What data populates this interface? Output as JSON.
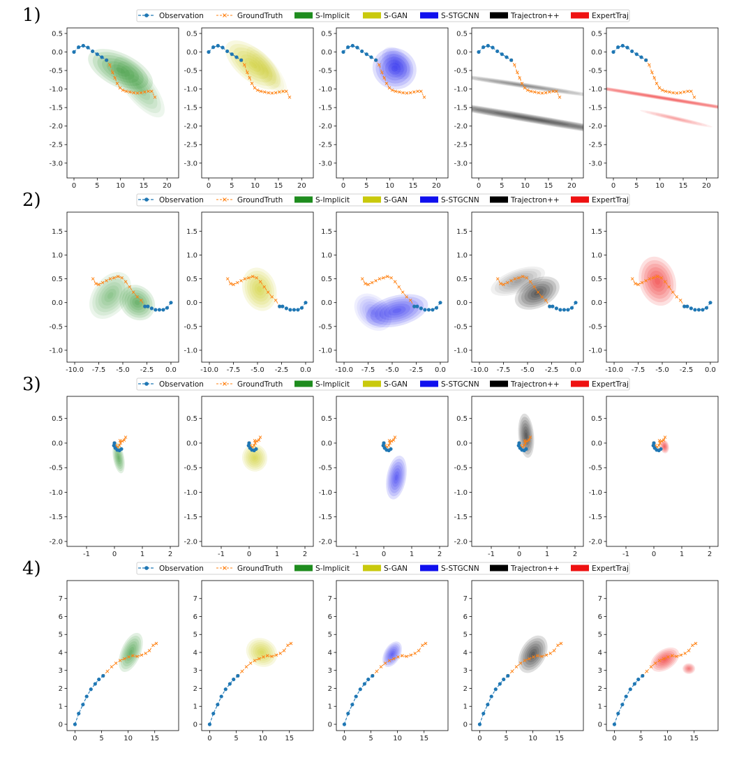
{
  "colors": {
    "observation": "#1f77b4",
    "groundtruth": "#ff7f0e",
    "S-Implicit": "#1e8c1e",
    "S-GAN": "#c9c90c",
    "S-STGCNN": "#1010ee",
    "Trajectron++": "#000000",
    "ExpertTraj": "#ee1111"
  },
  "legend": [
    {
      "label": "Observation",
      "kind": "obs"
    },
    {
      "label": "GroundTruth",
      "kind": "gt"
    },
    {
      "label": "S-Implicit",
      "kind": "patch",
      "method": "S-Implicit"
    },
    {
      "label": "S-GAN",
      "kind": "patch",
      "method": "S-GAN"
    },
    {
      "label": "S-STGCNN",
      "kind": "patch",
      "method": "S-STGCNN"
    },
    {
      "label": "Trajectron++",
      "kind": "patch",
      "method": "Trajectron++"
    },
    {
      "label": "ExpertTraj",
      "kind": "patch",
      "method": "ExpertTraj"
    }
  ],
  "chart_data": [
    {
      "type": "scatter",
      "row_label": "1)",
      "xlim": [
        -1.5,
        22.5
      ],
      "ylim": [
        -3.4,
        0.65
      ],
      "xticks": [
        0,
        5,
        10,
        15,
        20
      ],
      "yticks": [
        0.5,
        0.0,
        -0.5,
        -1.0,
        -1.5,
        -2.0,
        -2.5,
        -3.0
      ],
      "observation": [
        [
          0,
          0
        ],
        [
          1,
          0.13
        ],
        [
          2,
          0.17
        ],
        [
          3,
          0.12
        ],
        [
          4,
          0.02
        ],
        [
          5,
          -0.06
        ],
        [
          6,
          -0.14
        ],
        [
          7,
          -0.22
        ]
      ],
      "ground_truth": [
        [
          7,
          -0.22
        ],
        [
          7.7,
          -0.35
        ],
        [
          8.3,
          -0.55
        ],
        [
          8.8,
          -0.7
        ],
        [
          9.3,
          -0.85
        ],
        [
          9.9,
          -0.97
        ],
        [
          10.5,
          -1.03
        ],
        [
          11.2,
          -1.06
        ],
        [
          12,
          -1.08
        ],
        [
          12.8,
          -1.1
        ],
        [
          13.6,
          -1.11
        ],
        [
          14.4,
          -1.1
        ],
        [
          15.2,
          -1.08
        ],
        [
          16,
          -1.06
        ],
        [
          16.7,
          -1.06
        ],
        [
          17.4,
          -1.22
        ]
      ],
      "predictions": {
        "S-Implicit": [
          {
            "c": [
              10,
              -0.5
            ],
            "s": [
              3.6,
              0.95
            ],
            "r": 0.25,
            "w": 1
          },
          {
            "c": [
              14,
              -0.95
            ],
            "s": [
              3,
              1.0
            ],
            "r": 0.1,
            "w": 0.6
          }
        ],
        "S-GAN": [
          {
            "c": [
              9.5,
              -0.35
            ],
            "s": [
              3.4,
              0.9
            ],
            "r": 0.15,
            "w": 1
          },
          {
            "c": [
              12.5,
              -0.5
            ],
            "s": [
              2.2,
              0.8
            ],
            "r": 0.1,
            "w": 0.5
          }
        ],
        "S-STGCNN": [
          {
            "c": [
              11,
              -0.45
            ],
            "s": [
              4.4,
              0.6
            ],
            "r": 0.28,
            "w": 1
          },
          {
            "c": [
              11.5,
              -0.3
            ],
            "s": [
              2.5,
              0.5
            ],
            "r": 0.1,
            "w": 0.5
          }
        ],
        "Trajectron++": [
          {
            "c": [
              11.3,
              -1.8
            ],
            "s": [
              0.9,
              3.6
            ],
            "r": 0.64,
            "w": 1
          },
          {
            "c": [
              9.5,
              -0.9
            ],
            "s": [
              0.6,
              2.2
            ],
            "r": 0.7,
            "w": 0.6
          }
        ],
        "ExpertTraj": [
          {
            "c": [
              11,
              -1.25
            ],
            "s": [
              0.45,
              3.4
            ],
            "r": 0.66,
            "w": 1
          },
          {
            "c": [
              13.5,
              -1.8
            ],
            "s": [
              0.5,
              1.0
            ],
            "r": 0.5,
            "w": 0.5
          }
        ]
      }
    },
    {
      "type": "scatter",
      "row_label": "2)",
      "xlim": [
        -10.8,
        0.8
      ],
      "ylim": [
        -1.25,
        1.9
      ],
      "xticks": [
        -10.0,
        -7.5,
        -5.0,
        -2.5,
        0.0
      ],
      "yticks": [
        1.5,
        1.0,
        0.5,
        0.0,
        -0.5,
        -1.0
      ],
      "observation": [
        [
          0,
          0
        ],
        [
          -0.4,
          -0.11
        ],
        [
          -0.8,
          -0.15
        ],
        [
          -1.2,
          -0.15
        ],
        [
          -1.6,
          -0.15
        ],
        [
          -2,
          -0.12
        ],
        [
          -2.4,
          -0.08
        ],
        [
          -2.7,
          -0.08
        ]
      ],
      "ground_truth": [
        [
          -2.7,
          -0.08
        ],
        [
          -3.1,
          0.05
        ],
        [
          -3.5,
          0.12
        ],
        [
          -3.9,
          0.22
        ],
        [
          -4.3,
          0.33
        ],
        [
          -4.7,
          0.44
        ],
        [
          -5.1,
          0.52
        ],
        [
          -5.5,
          0.55
        ],
        [
          -5.9,
          0.52
        ],
        [
          -6.3,
          0.5
        ],
        [
          -6.7,
          0.46
        ],
        [
          -7.1,
          0.42
        ],
        [
          -7.5,
          0.38
        ],
        [
          -7.8,
          0.4
        ],
        [
          -8.1,
          0.5
        ]
      ],
      "predictions": {
        "S-Implicit": [
          {
            "c": [
              -3.5,
              0.0
            ],
            "s": [
              1.7,
              0.4
            ],
            "r": 0.2,
            "w": 1
          },
          {
            "c": [
              -6.3,
              0.15
            ],
            "s": [
              1.8,
              0.55
            ],
            "r": -0.15,
            "w": 0.7
          }
        ],
        "S-GAN": [
          {
            "c": [
              -4.8,
              0.28
            ],
            "s": [
              2.3,
              0.35
            ],
            "r": -0.55,
            "w": 1
          }
        ],
        "S-STGCNN": [
          {
            "c": [
              -4.5,
              -0.17
            ],
            "s": [
              3.3,
              0.32
            ],
            "r": 0.05,
            "w": 1
          },
          {
            "c": [
              -7.0,
              -0.2
            ],
            "s": [
              1.6,
              0.45
            ],
            "r": 0.2,
            "w": 0.5
          }
        ],
        "Trajectron++": [
          {
            "c": [
              -4.0,
              0.2
            ],
            "s": [
              1.5,
              0.5
            ],
            "r": -0.4,
            "w": 1
          },
          {
            "c": [
              -6.0,
              0.45
            ],
            "s": [
              1.2,
              0.6
            ],
            "r": -0.5,
            "w": 0.45
          }
        ],
        "ExpertTraj": [
          {
            "c": [
              -5.5,
              0.45
            ],
            "s": [
              2.6,
              0.38
            ],
            "r": -0.6,
            "w": 1
          }
        ]
      }
    },
    {
      "type": "scatter",
      "row_label": "3)",
      "xlim": [
        -1.7,
        2.3
      ],
      "ylim": [
        -2.1,
        0.95
      ],
      "xticks": [
        -1,
        0,
        1,
        2
      ],
      "yticks": [
        0.5,
        0.0,
        -0.5,
        -1.0,
        -1.5,
        -2.0
      ],
      "observation": [
        [
          0.25,
          -0.12
        ],
        [
          0.18,
          -0.15
        ],
        [
          0.1,
          -0.14
        ],
        [
          0.03,
          -0.1
        ],
        [
          -0.02,
          -0.05
        ],
        [
          0,
          0
        ]
      ],
      "ground_truth": [
        [
          0,
          0
        ],
        [
          0.05,
          -0.05
        ],
        [
          0.12,
          -0.08
        ],
        [
          0.18,
          -0.05
        ],
        [
          0.22,
          0.0
        ],
        [
          0.2,
          0.05
        ],
        [
          0.28,
          0.04
        ],
        [
          0.35,
          0.06
        ],
        [
          0.4,
          0.12
        ]
      ],
      "predictions": {
        "S-Implicit": [
          {
            "c": [
              0.15,
              -0.3
            ],
            "s": [
              0.2,
              0.32
            ],
            "r": 0.1,
            "w": 1
          }
        ],
        "S-GAN": [
          {
            "c": [
              0.2,
              -0.3
            ],
            "s": [
              0.45,
              0.28
            ],
            "r": 0.1,
            "w": 1
          }
        ],
        "S-STGCNN": [
          {
            "c": [
              0.45,
              -0.7
            ],
            "s": [
              0.35,
              0.45
            ],
            "r": -0.1,
            "w": 1
          }
        ],
        "Trajectron++": [
          {
            "c": [
              0.25,
              0.15
            ],
            "s": [
              0.28,
              0.45
            ],
            "r": 0.05,
            "w": 1
          }
        ],
        "ExpertTraj": [
          {
            "c": [
              0.38,
              -0.07
            ],
            "s": [
              0.16,
              0.14
            ],
            "r": 0.1,
            "w": 1
          }
        ]
      }
    },
    {
      "type": "scatter",
      "row_label": "4)",
      "xlim": [
        -1.5,
        19.5
      ],
      "ylim": [
        -0.35,
        8.0
      ],
      "xticks": [
        0,
        5,
        10,
        15
      ],
      "yticks": [
        7,
        6,
        5,
        4,
        3,
        2,
        1,
        0
      ],
      "observation": [
        [
          0,
          0
        ],
        [
          0.7,
          0.6
        ],
        [
          1.5,
          1.1
        ],
        [
          2.2,
          1.55
        ],
        [
          3,
          1.95
        ],
        [
          3.8,
          2.25
        ],
        [
          4.5,
          2.5
        ],
        [
          5.3,
          2.7
        ]
      ],
      "ground_truth": [
        [
          5.3,
          2.7
        ],
        [
          6.1,
          2.95
        ],
        [
          6.9,
          3.2
        ],
        [
          7.7,
          3.4
        ],
        [
          8.5,
          3.55
        ],
        [
          9.3,
          3.65
        ],
        [
          10.1,
          3.75
        ],
        [
          10.9,
          3.82
        ],
        [
          11.7,
          3.78
        ],
        [
          12.5,
          3.85
        ],
        [
          13.3,
          3.95
        ],
        [
          14,
          4.1
        ],
        [
          14.7,
          4.4
        ],
        [
          15.3,
          4.5
        ]
      ],
      "predictions": {
        "S-Implicit": [
          {
            "c": [
              10.5,
              4.0
            ],
            "s": [
              3.9,
              0.55
            ],
            "r": 0.62,
            "w": 1
          }
        ],
        "S-GAN": [
          {
            "c": [
              9.8,
              4.0
            ],
            "s": [
              2.6,
              0.9
            ],
            "r": 0.45,
            "w": 1
          }
        ],
        "S-STGCNN": [
          {
            "c": [
              9.0,
              3.9
            ],
            "s": [
              2.6,
              0.45
            ],
            "r": 0.5,
            "w": 1
          }
        ],
        "Trajectron++": [
          {
            "c": [
              10.0,
              3.9
            ],
            "s": [
              3.8,
              0.7
            ],
            "r": 0.5,
            "w": 1
          }
        ],
        "ExpertTraj": [
          {
            "c": [
              9.5,
              3.6
            ],
            "s": [
              3.0,
              0.55
            ],
            "r": 0.2,
            "w": 1
          },
          {
            "c": [
              14.0,
              3.1
            ],
            "s": [
              1.2,
              0.3
            ],
            "r": 0.0,
            "w": 0.8
          }
        ]
      }
    }
  ]
}
